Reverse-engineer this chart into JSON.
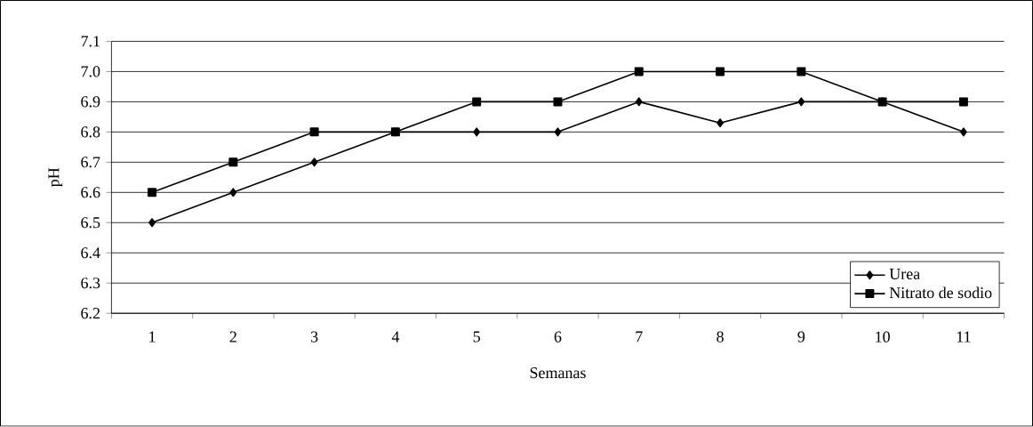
{
  "chart_data": {
    "type": "line",
    "xlabel": "Semanas",
    "ylabel": "pH",
    "categories": [
      "1",
      "2",
      "3",
      "4",
      "5",
      "6",
      "7",
      "8",
      "9",
      "10",
      "11"
    ],
    "series": [
      {
        "name": "Urea",
        "color": "#000000",
        "marker": "diamond",
        "values": [
          6.5,
          6.6,
          6.7,
          6.8,
          6.8,
          6.8,
          6.9,
          6.83,
          6.9,
          6.9,
          6.8
        ]
      },
      {
        "name": "Nitrato de sodio",
        "color": "#000000",
        "marker": "square",
        "values": [
          6.6,
          6.7,
          6.8,
          6.8,
          6.9,
          6.9,
          7.0,
          7.0,
          7.0,
          6.9,
          6.9
        ]
      }
    ],
    "ylim": [
      6.2,
      7.1
    ],
    "yticks": [
      {
        "value": 6.2,
        "label": "6.2"
      },
      {
        "value": 6.3,
        "label": "6.3"
      },
      {
        "value": 6.4,
        "label": "6.4"
      },
      {
        "value": 6.5,
        "label": "6.5"
      },
      {
        "value": 6.6,
        "label": "6.6"
      },
      {
        "value": 6.7,
        "label": "6.7"
      },
      {
        "value": 6.8,
        "label": "6.8"
      },
      {
        "value": 6.9,
        "label": "6.9"
      },
      {
        "value": 7.0,
        "label": "7.0"
      },
      {
        "value": 7.1,
        "label": "7.1"
      }
    ],
    "grid": "y",
    "legend": "bottom right",
    "line_style": "solid"
  }
}
